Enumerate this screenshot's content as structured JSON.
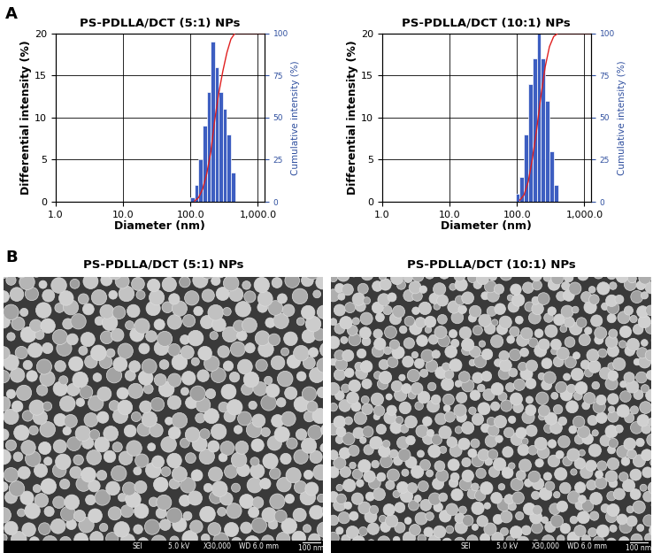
{
  "chart_data": [
    {
      "type": "bar",
      "title": "PS-PDLLA/DCT (5:1) NPs",
      "x_label": "Diameter (nm)",
      "y_label": "Differential intensity (%)",
      "y2_label": "Cumulative intensity (%)",
      "log": "x",
      "grid": true,
      "bins": [
        100,
        115,
        132,
        151,
        174,
        200,
        229,
        263,
        302,
        347,
        398,
        457
      ],
      "series": [
        {
          "type": "bar",
          "color": "#3d5ec1",
          "values": [
            0.5,
            2,
            5,
            9,
            13,
            19,
            16,
            13,
            11,
            8,
            3.5
          ]
        },
        {
          "type": "line",
          "axis": "y2",
          "color": "#e02020",
          "x": [
            115,
            132,
            151,
            174,
            200,
            229,
            263,
            302,
            347,
            398,
            457,
            1250
          ],
          "values": [
            0.5,
            2.5,
            7.5,
            16.5,
            29.5,
            48.5,
            64.5,
            77.5,
            88.5,
            96.5,
            100,
            100
          ]
        }
      ],
      "xlim": [
        1,
        1250
      ],
      "xticks": [
        {
          "value": 1,
          "label": "1.0"
        },
        {
          "value": 10,
          "label": "10.0"
        },
        {
          "value": 100,
          "label": "100.0"
        },
        {
          "value": 1000,
          "label": "1,000.0"
        }
      ],
      "ylim": [
        0,
        20
      ],
      "yticks": [
        0,
        5,
        10,
        15,
        20
      ],
      "y2lim": [
        0,
        100
      ],
      "y2ticks": [
        0,
        25,
        50,
        75,
        100
      ]
    },
    {
      "type": "bar",
      "title": "PS-PDLLA/DCT (10:1) NPs",
      "x_label": "Diameter (nm)",
      "y_label": "Differential intensity (%)",
      "y2_label": "Cumulative intensity (%)",
      "log": "x",
      "grid": true,
      "bins": [
        95,
        110,
        127,
        147,
        170,
        196,
        227,
        262,
        303,
        350,
        405
      ],
      "series": [
        {
          "type": "bar",
          "color": "#3d5ec1",
          "values": [
            1,
            3,
            8,
            14,
            17,
            20,
            17,
            12,
            6,
            2
          ]
        },
        {
          "type": "line",
          "axis": "y2",
          "color": "#e02020",
          "x": [
            110,
            127,
            147,
            170,
            196,
            227,
            262,
            303,
            350,
            405,
            1250
          ],
          "values": [
            1,
            4,
            12,
            26,
            43,
            63,
            80,
            92,
            98,
            100,
            100
          ]
        }
      ],
      "xlim": [
        1,
        1250
      ],
      "xticks": [
        {
          "value": 1,
          "label": "1.0"
        },
        {
          "value": 10,
          "label": "10.0"
        },
        {
          "value": 100,
          "label": "100.0"
        },
        {
          "value": 1000,
          "label": "1,000.0"
        }
      ],
      "ylim": [
        0,
        20
      ],
      "yticks": [
        0,
        5,
        10,
        15,
        20
      ],
      "y2lim": [
        0,
        100
      ],
      "y2ticks": [
        0,
        25,
        50,
        75,
        100
      ]
    }
  ],
  "panel_labels": [
    "A",
    "B"
  ],
  "images": [
    {
      "title": "PS-PDLLA/DCT (5:1) NPs",
      "info": [
        "SEI",
        "5.0 kV",
        "X30,000",
        "WD 6.0 mm"
      ],
      "scale_bar": "100 nm"
    },
    {
      "title": "PS-PDLLA/DCT (10:1) NPs",
      "info": [
        "SEI",
        "5.0 kV",
        "X30,000",
        "WD 6.0 mm"
      ],
      "scale_bar": "100 nm"
    }
  ]
}
